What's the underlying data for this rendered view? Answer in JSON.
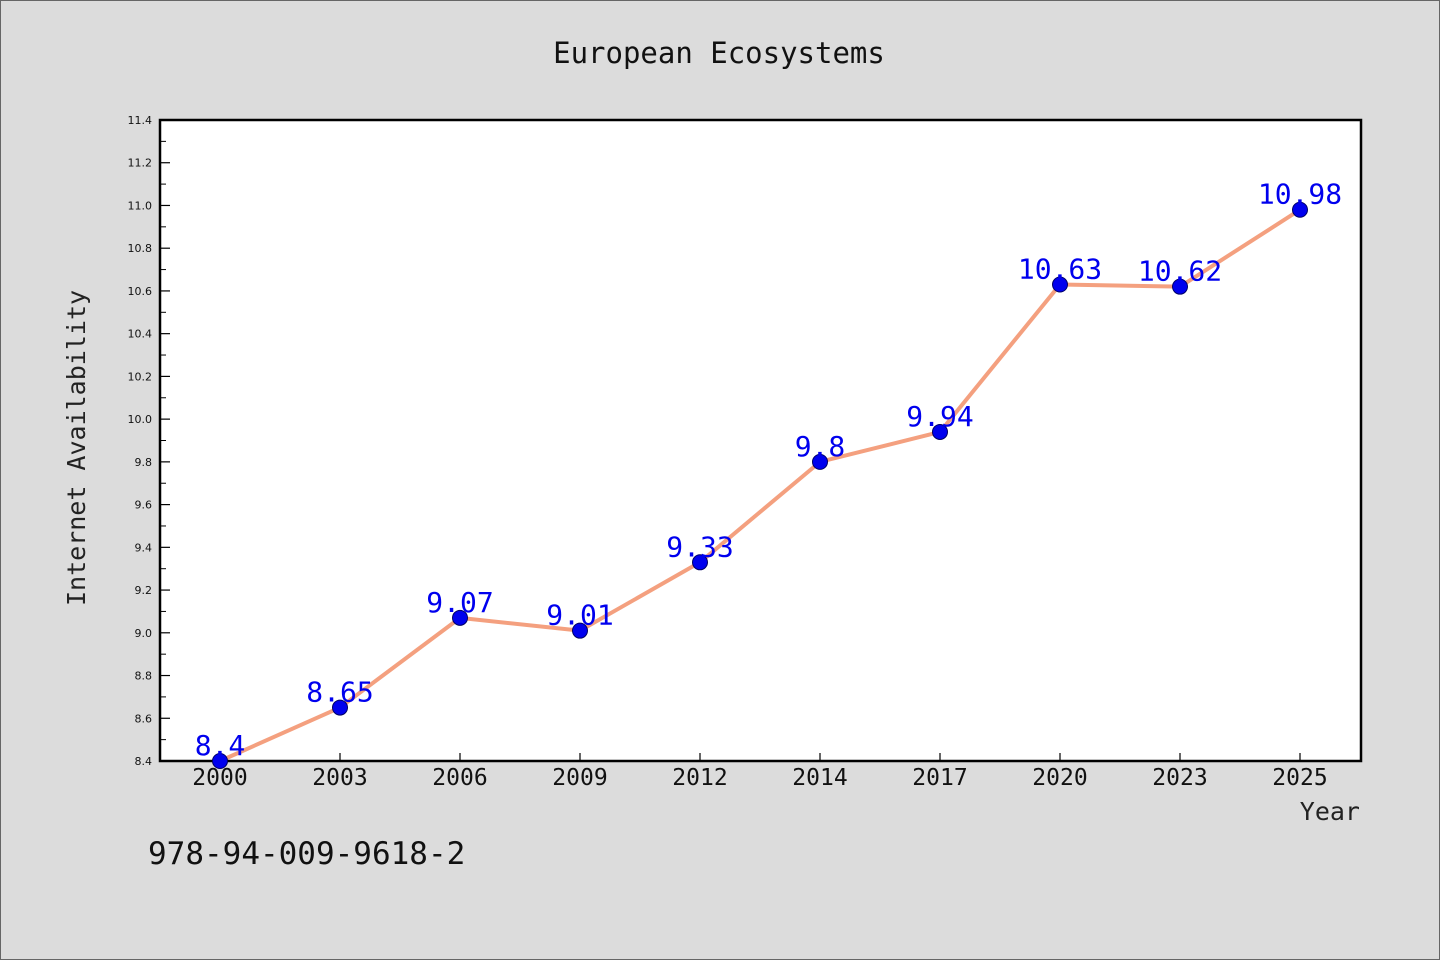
{
  "chart_data": {
    "type": "line",
    "title": "European Ecosystems",
    "xlabel": "Year",
    "ylabel": "Internet Availability",
    "categories": [
      "2000",
      "2003",
      "2006",
      "2009",
      "2012",
      "2014",
      "2017",
      "2020",
      "2023",
      "2025"
    ],
    "series": [
      {
        "values": [
          8.4,
          8.65,
          9.07,
          9.01,
          9.33,
          9.8,
          9.94,
          10.63,
          10.62,
          10.98
        ],
        "labels": [
          "8.4",
          "8.65",
          "9.07",
          "9.01",
          "9.33",
          "9.8",
          "9.94",
          "10.63",
          "10.62",
          "10.98"
        ]
      }
    ],
    "ylim": [
      8.4,
      11.4
    ],
    "yticks": [
      "8.4",
      "8.6",
      "8.8",
      "9.0",
      "9.2",
      "9.4",
      "9.6",
      "9.8",
      "10.0",
      "10.2",
      "10.4",
      "10.6",
      "10.8",
      "11.0",
      "11.2",
      "11.4"
    ],
    "grid": false,
    "legend": "none",
    "colors": {
      "line": "#f4a07f",
      "marker_fill": "#0000ee",
      "marker_edge": "#000066",
      "data_label": "#0000ee",
      "background": "#dcdcdc",
      "plot_area": "#ffffff"
    },
    "annotation": "978-94-009-9618-2"
  }
}
